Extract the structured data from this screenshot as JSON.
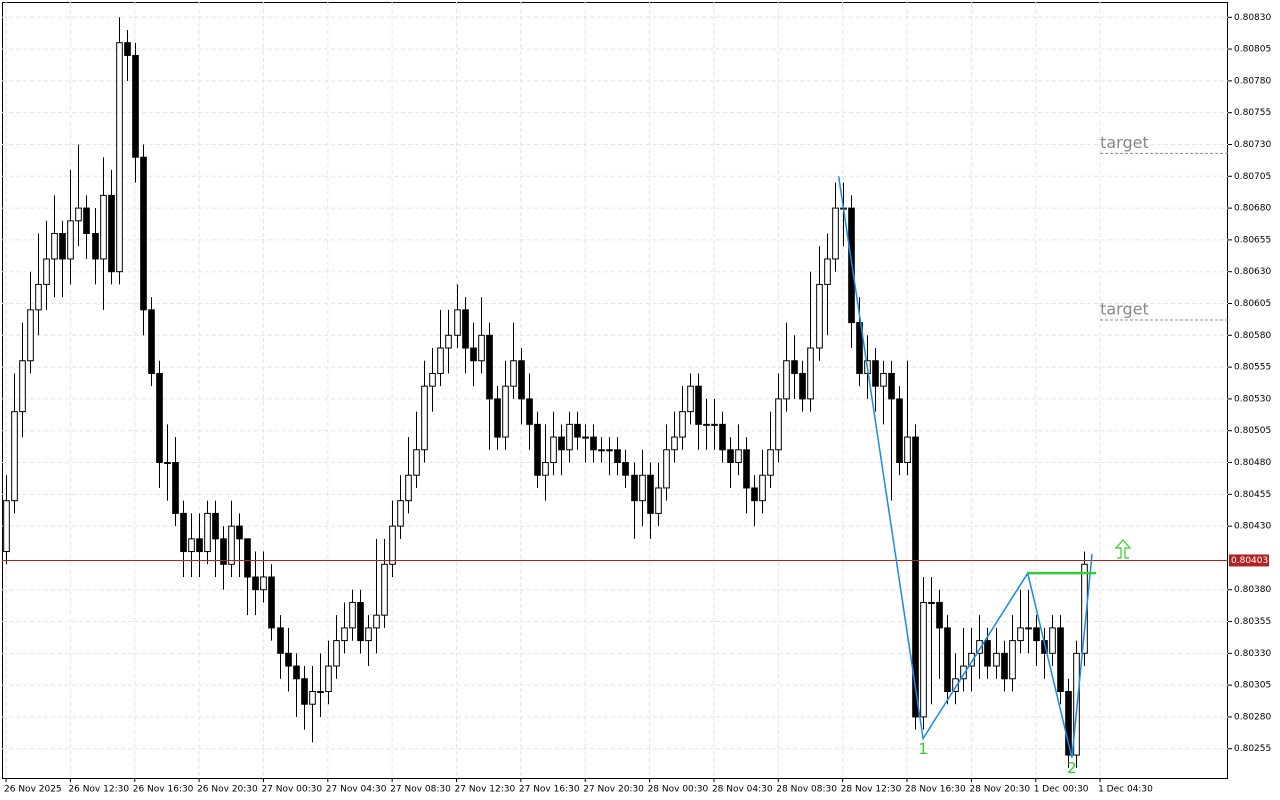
{
  "chart_data": {
    "type": "candlestick",
    "candles": [
      [
        0.8041,
        0.8047,
        0.804,
        0.8045
      ],
      [
        0.8045,
        0.8055,
        0.8044,
        0.8052
      ],
      [
        0.8052,
        0.8059,
        0.805,
        0.8056
      ],
      [
        0.8056,
        0.8063,
        0.8055,
        0.806
      ],
      [
        0.806,
        0.8066,
        0.8058,
        0.8062
      ],
      [
        0.8062,
        0.8067,
        0.806,
        0.8064
      ],
      [
        0.8064,
        0.8069,
        0.8061,
        0.8066
      ],
      [
        0.8066,
        0.8067,
        0.8061,
        0.8064
      ],
      [
        0.8064,
        0.8071,
        0.8062,
        0.8067
      ],
      [
        0.8067,
        0.8073,
        0.8065,
        0.8068
      ],
      [
        0.8068,
        0.8069,
        0.8064,
        0.8066
      ],
      [
        0.8066,
        0.8068,
        0.8062,
        0.8064
      ],
      [
        0.8064,
        0.8072,
        0.806,
        0.8069
      ],
      [
        0.8069,
        0.8071,
        0.8062,
        0.8063
      ],
      [
        0.8063,
        0.8083,
        0.8062,
        0.8081
      ],
      [
        0.8081,
        0.8082,
        0.8078,
        0.808
      ],
      [
        0.808,
        0.8081,
        0.807,
        0.8072
      ],
      [
        0.8072,
        0.8073,
        0.8058,
        0.806
      ],
      [
        0.806,
        0.8061,
        0.8054,
        0.8055
      ],
      [
        0.8055,
        0.8056,
        0.8046,
        0.8048
      ],
      [
        0.8048,
        0.8051,
        0.8045,
        0.8048
      ],
      [
        0.8048,
        0.805,
        0.8043,
        0.8044
      ],
      [
        0.8044,
        0.8045,
        0.8039,
        0.8041
      ],
      [
        0.8041,
        0.8044,
        0.8039,
        0.8042
      ],
      [
        0.8042,
        0.8044,
        0.8039,
        0.8041
      ],
      [
        0.8041,
        0.8045,
        0.804,
        0.8044
      ],
      [
        0.8044,
        0.8045,
        0.8039,
        0.8042
      ],
      [
        0.8042,
        0.8043,
        0.8038,
        0.804
      ],
      [
        0.804,
        0.8045,
        0.8039,
        0.8043
      ],
      [
        0.8043,
        0.8044,
        0.8039,
        0.8042
      ],
      [
        0.8042,
        0.8042,
        0.8036,
        0.8039
      ],
      [
        0.8039,
        0.8041,
        0.8036,
        0.8038
      ],
      [
        0.8038,
        0.8041,
        0.8037,
        0.8039
      ],
      [
        0.8039,
        0.804,
        0.8034,
        0.8035
      ],
      [
        0.8035,
        0.8036,
        0.8031,
        0.8033
      ],
      [
        0.8033,
        0.8035,
        0.803,
        0.8032
      ],
      [
        0.8032,
        0.8033,
        0.8028,
        0.8031
      ],
      [
        0.8031,
        0.8032,
        0.8027,
        0.8029
      ],
      [
        0.8029,
        0.8032,
        0.8026,
        0.803
      ],
      [
        0.803,
        0.8033,
        0.8028,
        0.803
      ],
      [
        0.803,
        0.8034,
        0.8029,
        0.8032
      ],
      [
        0.8032,
        0.8036,
        0.8031,
        0.8034
      ],
      [
        0.8034,
        0.8037,
        0.8033,
        0.8035
      ],
      [
        0.8035,
        0.8038,
        0.8034,
        0.8037
      ],
      [
        0.8037,
        0.8038,
        0.8033,
        0.8034
      ],
      [
        0.8034,
        0.8036,
        0.8032,
        0.8035
      ],
      [
        0.8035,
        0.8042,
        0.8033,
        0.8036
      ],
      [
        0.8036,
        0.8042,
        0.8035,
        0.804
      ],
      [
        0.804,
        0.8045,
        0.8039,
        0.8043
      ],
      [
        0.8043,
        0.8047,
        0.8042,
        0.8045
      ],
      [
        0.8045,
        0.805,
        0.8044,
        0.8047
      ],
      [
        0.8047,
        0.8052,
        0.8046,
        0.8049
      ],
      [
        0.8049,
        0.8056,
        0.8048,
        0.8054
      ],
      [
        0.8054,
        0.8057,
        0.8052,
        0.8055
      ],
      [
        0.8055,
        0.806,
        0.8054,
        0.8057
      ],
      [
        0.8057,
        0.806,
        0.8055,
        0.8058
      ],
      [
        0.8058,
        0.8062,
        0.8057,
        0.806
      ],
      [
        0.806,
        0.8061,
        0.8055,
        0.8057
      ],
      [
        0.8057,
        0.8059,
        0.8054,
        0.8056
      ],
      [
        0.8056,
        0.8061,
        0.8055,
        0.8058
      ],
      [
        0.8058,
        0.8059,
        0.8049,
        0.8053
      ],
      [
        0.8053,
        0.8054,
        0.8049,
        0.805
      ],
      [
        0.805,
        0.8056,
        0.8049,
        0.8054
      ],
      [
        0.8054,
        0.8059,
        0.8053,
        0.8056
      ],
      [
        0.8056,
        0.8057,
        0.8051,
        0.8053
      ],
      [
        0.8053,
        0.8055,
        0.8049,
        0.8051
      ],
      [
        0.8051,
        0.8052,
        0.8046,
        0.8047
      ],
      [
        0.8047,
        0.8051,
        0.8045,
        0.8048
      ],
      [
        0.8048,
        0.8052,
        0.8047,
        0.805
      ],
      [
        0.805,
        0.8051,
        0.8047,
        0.8049
      ],
      [
        0.8049,
        0.8052,
        0.8048,
        0.8051
      ],
      [
        0.8051,
        0.8052,
        0.8049,
        0.805
      ],
      [
        0.805,
        0.8051,
        0.8048,
        0.805
      ],
      [
        0.805,
        0.8051,
        0.8048,
        0.8049
      ],
      [
        0.8049,
        0.805,
        0.8048,
        0.8049
      ],
      [
        0.8049,
        0.805,
        0.8047,
        0.8049
      ],
      [
        0.8049,
        0.805,
        0.8047,
        0.8048
      ],
      [
        0.8048,
        0.8049,
        0.8046,
        0.8047
      ],
      [
        0.8047,
        0.8048,
        0.8042,
        0.8045
      ],
      [
        0.8045,
        0.8049,
        0.8043,
        0.8047
      ],
      [
        0.8047,
        0.8048,
        0.8042,
        0.8044
      ],
      [
        0.8044,
        0.8048,
        0.8043,
        0.8046
      ],
      [
        0.8046,
        0.8051,
        0.8045,
        0.8049
      ],
      [
        0.8049,
        0.8052,
        0.8048,
        0.805
      ],
      [
        0.805,
        0.8054,
        0.8049,
        0.8052
      ],
      [
        0.8052,
        0.8055,
        0.8051,
        0.8054
      ],
      [
        0.8054,
        0.8055,
        0.8049,
        0.8051
      ],
      [
        0.8051,
        0.8053,
        0.8049,
        0.8051
      ],
      [
        0.8051,
        0.8053,
        0.8049,
        0.8051
      ],
      [
        0.8051,
        0.8052,
        0.8048,
        0.8049
      ],
      [
        0.8049,
        0.805,
        0.8046,
        0.8048
      ],
      [
        0.8048,
        0.8051,
        0.8047,
        0.8049
      ],
      [
        0.8049,
        0.805,
        0.8044,
        0.8046
      ],
      [
        0.8046,
        0.8047,
        0.8043,
        0.8045
      ],
      [
        0.8045,
        0.8049,
        0.8044,
        0.8047
      ],
      [
        0.8047,
        0.8052,
        0.8046,
        0.8049
      ],
      [
        0.8049,
        0.8055,
        0.8048,
        0.8053
      ],
      [
        0.8053,
        0.8059,
        0.8052,
        0.8056
      ],
      [
        0.8056,
        0.8058,
        0.8053,
        0.8055
      ],
      [
        0.8055,
        0.8056,
        0.8052,
        0.8053
      ],
      [
        0.8053,
        0.8063,
        0.8052,
        0.8057
      ],
      [
        0.8057,
        0.8065,
        0.8056,
        0.8062
      ],
      [
        0.8062,
        0.8066,
        0.8058,
        0.8064
      ],
      [
        0.8064,
        0.807,
        0.8063,
        0.8068
      ],
      [
        0.8068,
        0.807,
        0.8065,
        0.8068
      ],
      [
        0.8068,
        0.8069,
        0.8057,
        0.8059
      ],
      [
        0.8059,
        0.8061,
        0.8054,
        0.8055
      ],
      [
        0.8055,
        0.8058,
        0.8053,
        0.8056
      ],
      [
        0.8056,
        0.8057,
        0.8052,
        0.8054
      ],
      [
        0.8054,
        0.8056,
        0.8051,
        0.8055
      ],
      [
        0.8055,
        0.8056,
        0.8045,
        0.8053
      ],
      [
        0.8053,
        0.8054,
        0.8047,
        0.8048
      ],
      [
        0.8048,
        0.8056,
        0.8047,
        0.805
      ],
      [
        0.805,
        0.8051,
        0.8027,
        0.8028
      ],
      [
        0.8028,
        0.8039,
        0.8027,
        0.8037
      ],
      [
        0.8037,
        0.8039,
        0.8029,
        0.8037
      ],
      [
        0.8037,
        0.8038,
        0.8031,
        0.8035
      ],
      [
        0.8035,
        0.8036,
        0.8029,
        0.803
      ],
      [
        0.803,
        0.8033,
        0.8029,
        0.8031
      ],
      [
        0.8031,
        0.8035,
        0.803,
        0.8032
      ],
      [
        0.8032,
        0.8035,
        0.803,
        0.8033
      ],
      [
        0.8033,
        0.8036,
        0.8031,
        0.8034
      ],
      [
        0.8034,
        0.8035,
        0.8031,
        0.8032
      ],
      [
        0.8032,
        0.8035,
        0.8031,
        0.8033
      ],
      [
        0.8033,
        0.8034,
        0.803,
        0.8031
      ],
      [
        0.8031,
        0.8036,
        0.803,
        0.8034
      ],
      [
        0.8034,
        0.8038,
        0.8033,
        0.8035
      ],
      [
        0.8035,
        0.8038,
        0.8033,
        0.8035
      ],
      [
        0.8035,
        0.8036,
        0.8032,
        0.8034
      ],
      [
        0.8034,
        0.8035,
        0.8031,
        0.8033
      ],
      [
        0.8033,
        0.8036,
        0.8032,
        0.8035
      ],
      [
        0.8035,
        0.8036,
        0.8029,
        0.803
      ],
      [
        0.803,
        0.8031,
        0.8024,
        0.8025
      ],
      [
        0.8025,
        0.8034,
        0.8024,
        0.8033
      ],
      [
        0.8033,
        0.8041,
        0.8032,
        0.804
      ]
    ],
    "xlim": [
      -0.5,
      151.9
    ],
    "xticks": [
      {
        "value": 0,
        "label": "26 Nov 2025"
      },
      {
        "value": 8,
        "label": "26 Nov 12:30"
      },
      {
        "value": 16,
        "label": "26 Nov 16:30"
      },
      {
        "value": 24,
        "label": "26 Nov 20:30"
      },
      {
        "value": 32,
        "label": "27 Nov 00:30"
      },
      {
        "value": 40,
        "label": "27 Nov 04:30"
      },
      {
        "value": 48,
        "label": "27 Nov 08:30"
      },
      {
        "value": 56,
        "label": "27 Nov 12:30"
      },
      {
        "value": 64,
        "label": "27 Nov 16:30"
      },
      {
        "value": 72,
        "label": "27 Nov 20:30"
      },
      {
        "value": 80,
        "label": "28 Nov 00:30"
      },
      {
        "value": 88,
        "label": "28 Nov 04:30"
      },
      {
        "value": 96,
        "label": "28 Nov 08:30"
      },
      {
        "value": 104,
        "label": "28 Nov 12:30"
      },
      {
        "value": 112,
        "label": "28 Nov 16:30"
      },
      {
        "value": 120,
        "label": "28 Nov 20:30"
      },
      {
        "value": 128,
        "label": "1 Dec 00:30"
      },
      {
        "value": 136,
        "label": "1 Dec 04:30"
      }
    ],
    "ylim": [
      0.80232,
      0.80842
    ],
    "yticks": [
      {
        "value": 0.8083,
        "label": "0.80830"
      },
      0.80805,
      {
        "value": 0.8078,
        "label": "0.80780"
      },
      0.80755,
      {
        "value": 0.8073,
        "label": "0.80730"
      },
      0.80705,
      {
        "value": 0.8068,
        "label": "0.80680"
      },
      0.80655,
      {
        "value": 0.8063,
        "label": "0.80630"
      },
      0.80605,
      {
        "value": 0.8058,
        "label": "0.80580"
      },
      0.80555,
      {
        "value": 0.8053,
        "label": "0.80530"
      },
      0.80505,
      {
        "value": 0.8048,
        "label": "0.80480"
      },
      0.80455,
      {
        "value": 0.8043,
        "label": "0.80430"
      },
      {
        "value": 0.8038,
        "label": "0.80380"
      },
      0.80355,
      {
        "value": 0.8033,
        "label": "0.80330"
      },
      0.80305,
      {
        "value": 0.8028,
        "label": "0.80280"
      },
      0.80255
    ],
    "grid": true,
    "current_price": {
      "value": 0.80403,
      "label": "0.80403"
    },
    "pattern": {
      "color": "#1e88e5",
      "x": [
        103.5,
        114,
        127,
        132.5,
        135
      ],
      "y": [
        0.80705,
        0.80263,
        0.80393,
        0.80248,
        0.80408
      ],
      "point_labels": [
        {
          "point": 1,
          "label": "1"
        },
        {
          "point": 3,
          "label": "2"
        }
      ],
      "breakout": {
        "color": "#32cd32",
        "x": [
          127,
          135.5
        ],
        "price": 0.80393
      }
    },
    "targets": [
      {
        "label": "target",
        "price": 0.80723,
        "x": 136
      },
      {
        "label": "target",
        "price": 0.80592,
        "x": 136
      }
    ]
  }
}
